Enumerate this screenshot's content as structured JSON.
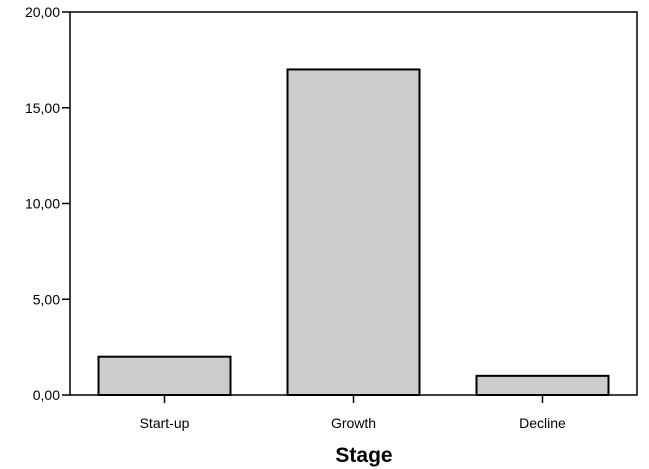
{
  "chart_data": {
    "type": "bar",
    "categories": [
      "Start-up",
      "Growth",
      "Decline"
    ],
    "values": [
      2,
      17,
      1
    ],
    "title": "",
    "xlabel": "Stage",
    "ylabel": "",
    "ylim": [
      0,
      20
    ],
    "yticks": [
      0,
      5,
      10,
      15,
      20
    ],
    "ytick_labels": [
      "0,00",
      "5,00",
      "10,00",
      "15,00",
      "20,00"
    ],
    "grid": false,
    "legend": "none",
    "bar_color": "#cccccc",
    "bar_edge_color": "#000000"
  }
}
